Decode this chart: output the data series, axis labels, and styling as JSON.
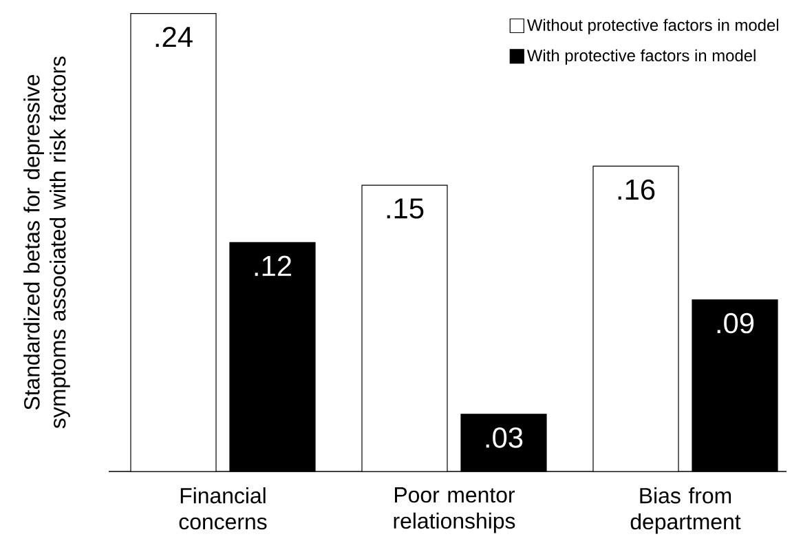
{
  "chart_data": {
    "type": "bar",
    "ylabel": "Standardized betas for depressive symptoms associated with risk factors",
    "categories": [
      "Financial concerns",
      "Poor mentor relationships",
      "Bias from department"
    ],
    "series": [
      {
        "name": "Without protective factors in model",
        "color": "#ffffff",
        "values": [
          0.24,
          0.15,
          0.16
        ],
        "value_labels": [
          ".24",
          ".15",
          ".16"
        ]
      },
      {
        "name": "With protective factors in model",
        "color": "#000000",
        "values": [
          0.12,
          0.03,
          0.09
        ],
        "value_labels": [
          ".12",
          ".03",
          ".09"
        ]
      }
    ],
    "legend": "top right"
  }
}
